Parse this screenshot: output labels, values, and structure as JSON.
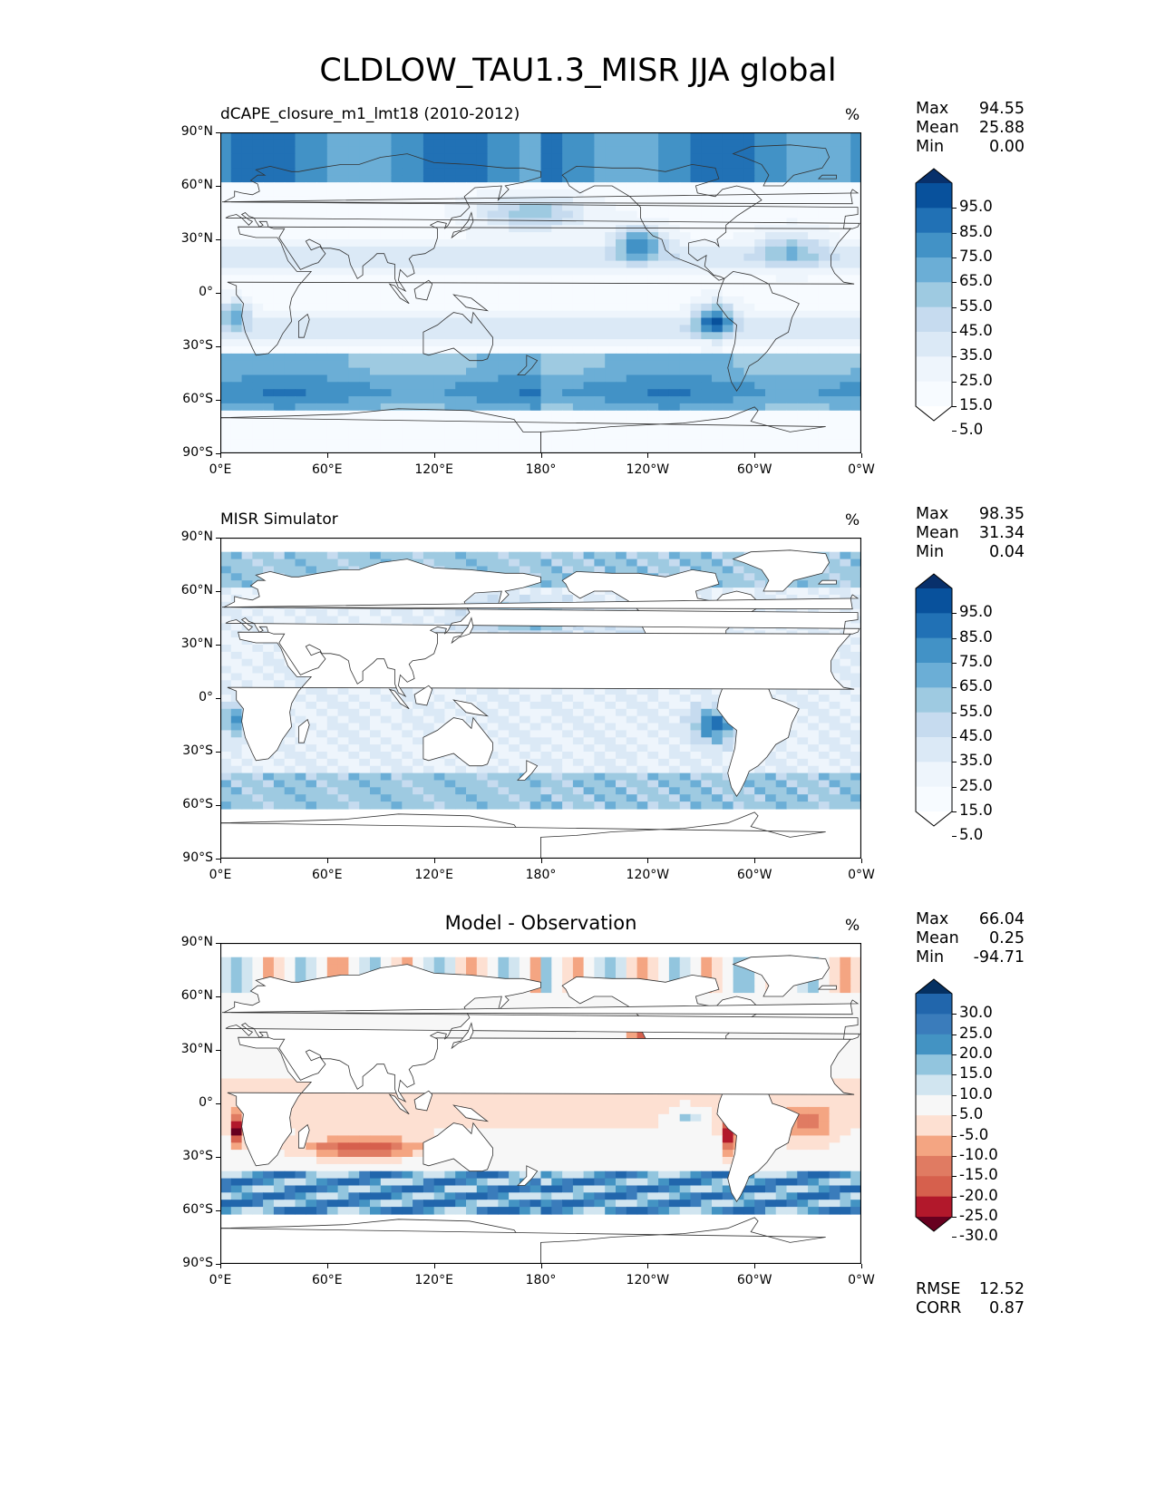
{
  "title": "CLDLOW_TAU1.3_MISR JJA global",
  "lat_ticks": [
    "90°N",
    "60°N",
    "30°N",
    "0°",
    "30°S",
    "60°S",
    "90°S"
  ],
  "lon_ticks": [
    "0°E",
    "60°E",
    "120°E",
    "180°",
    "120°W",
    "60°W",
    "0°W"
  ],
  "panels": [
    {
      "id": "model",
      "title_left": "dCAPE_closure_m1_lmt18 (2010-2012)",
      "title_center": "",
      "units": "%",
      "stats": [
        {
          "label": "Max",
          "value": "94.55"
        },
        {
          "label": "Mean",
          "value": "25.88"
        },
        {
          "label": "Min",
          "value": "0.00"
        }
      ],
      "colorbar_labels": [
        "95.0",
        "85.0",
        "75.0",
        "65.0",
        "55.0",
        "45.0",
        "35.0",
        "25.0",
        "15.0",
        "5.0"
      ],
      "colorbar_colors": [
        "#08306b",
        "#08519c",
        "#2171b5",
        "#4292c6",
        "#6baed6",
        "#9ecae1",
        "#c6dbef",
        "#dbe9f6",
        "#eef5fc",
        "#f7fbff",
        "#ffffff"
      ],
      "bottom_stats": []
    },
    {
      "id": "obs",
      "title_left": "MISR Simulator",
      "title_center": "",
      "units": "%",
      "stats": [
        {
          "label": "Max",
          "value": "98.35"
        },
        {
          "label": "Mean",
          "value": "31.34"
        },
        {
          "label": "Min",
          "value": "0.04"
        }
      ],
      "colorbar_labels": [
        "95.0",
        "85.0",
        "75.0",
        "65.0",
        "55.0",
        "45.0",
        "35.0",
        "25.0",
        "15.0",
        "5.0"
      ],
      "colorbar_colors": [
        "#08306b",
        "#08519c",
        "#2171b5",
        "#4292c6",
        "#6baed6",
        "#9ecae1",
        "#c6dbef",
        "#dbe9f6",
        "#eef5fc",
        "#f7fbff",
        "#ffffff"
      ],
      "bottom_stats": []
    },
    {
      "id": "diff",
      "title_left": "",
      "title_center": "Model - Observation",
      "units": "%",
      "stats": [
        {
          "label": "Max",
          "value": "66.04"
        },
        {
          "label": "Mean",
          "value": "0.25"
        },
        {
          "label": "Min",
          "value": "-94.71"
        }
      ],
      "colorbar_labels": [
        "30.0",
        "25.0",
        "20.0",
        "15.0",
        "10.0",
        "5.0",
        "-5.0",
        "-10.0",
        "-15.0",
        "-20.0",
        "-25.0",
        "-30.0"
      ],
      "colorbar_colors": [
        "#053061",
        "#2166ac",
        "#3a7cbb",
        "#4393c3",
        "#92c5de",
        "#d1e5f0",
        "#f7f7f7",
        "#fde0d2",
        "#f4a582",
        "#e07b62",
        "#d6604d",
        "#b2182b",
        "#67001f"
      ],
      "bottom_stats": [
        {
          "label": "RMSE",
          "value": "12.52"
        },
        {
          "label": "CORR",
          "value": "0.87"
        }
      ]
    }
  ],
  "colors": {
    "land": "#ffffff",
    "coast": "#333333",
    "frame": "#000000"
  }
}
